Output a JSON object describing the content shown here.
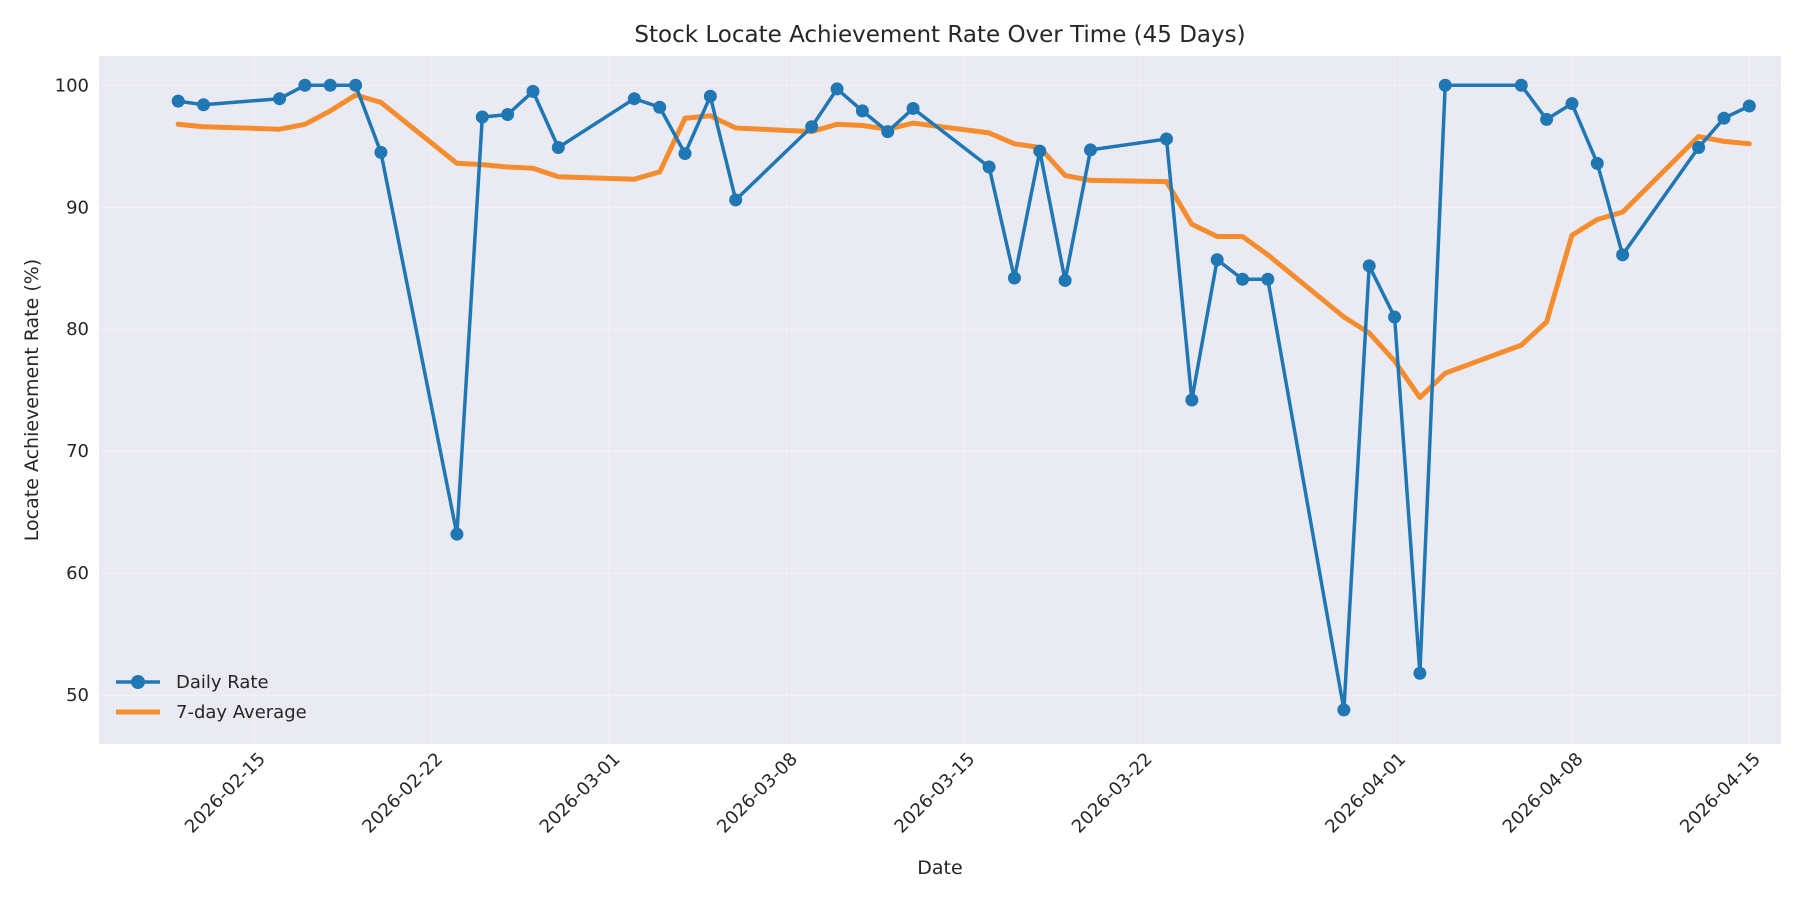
{
  "chart_data": {
    "type": "line",
    "title": "Stock Locate Achievement Rate Over Time (45 Days)",
    "xlabel": "Date",
    "ylabel": "Locate Achievement Rate (%)",
    "x_tick_labels": [
      "2026-02-15",
      "2026-02-22",
      "2026-03-01",
      "2026-03-08",
      "2026-03-15",
      "2026-03-22",
      "2026-04-01",
      "2026-04-08",
      "2026-04-15"
    ],
    "y_ticks": [
      50,
      60,
      70,
      80,
      90,
      100
    ],
    "ylim": [
      46.0,
      102.4
    ],
    "xlim": [
      "2026-02-08T21:00",
      "2026-04-16T06:00"
    ],
    "grid": true,
    "legend_position": "lower-left",
    "background_color": "#eaeaf2",
    "series": [
      {
        "name": "Daily Rate",
        "color": "#1f77b4",
        "marker": "circle",
        "x": [
          "2026-02-12",
          "2026-02-13",
          "2026-02-16",
          "2026-02-17",
          "2026-02-18",
          "2026-02-19",
          "2026-02-20",
          "2026-02-23",
          "2026-02-24",
          "2026-02-25",
          "2026-02-26",
          "2026-02-27",
          "2026-03-02",
          "2026-03-03",
          "2026-03-04",
          "2026-03-05",
          "2026-03-06",
          "2026-03-09",
          "2026-03-10",
          "2026-03-11",
          "2026-03-12",
          "2026-03-13",
          "2026-03-16",
          "2026-03-17",
          "2026-03-18",
          "2026-03-19",
          "2026-03-20",
          "2026-03-23",
          "2026-03-24",
          "2026-03-25",
          "2026-03-26",
          "2026-03-27",
          "2026-03-30",
          "2026-03-31",
          "2026-04-01",
          "2026-04-02",
          "2026-04-03",
          "2026-04-06",
          "2026-04-07",
          "2026-04-08",
          "2026-04-09",
          "2026-04-10",
          "2026-04-13",
          "2026-04-14",
          "2026-04-15"
        ],
        "y": [
          98.7,
          98.4,
          98.9,
          100.0,
          100.0,
          100.0,
          94.5,
          63.2,
          97.4,
          97.6,
          99.5,
          94.9,
          98.9,
          98.2,
          94.4,
          99.1,
          90.6,
          96.6,
          99.7,
          97.9,
          96.2,
          98.1,
          93.3,
          84.2,
          94.6,
          84.0,
          94.7,
          95.6,
          74.2,
          85.7,
          84.1,
          84.1,
          48.8,
          85.2,
          81.0,
          51.8,
          100.0,
          100.0,
          97.2,
          98.5,
          93.6,
          86.1,
          94.9,
          97.3,
          98.3
        ]
      },
      {
        "name": "7-day Average",
        "color": "#f58d2e",
        "marker": "none",
        "x": [
          "2026-02-12",
          "2026-02-13",
          "2026-02-16",
          "2026-02-17",
          "2026-02-18",
          "2026-02-19",
          "2026-02-20",
          "2026-02-23",
          "2026-02-24",
          "2026-02-25",
          "2026-02-26",
          "2026-02-27",
          "2026-03-02",
          "2026-03-03",
          "2026-03-04",
          "2026-03-05",
          "2026-03-06",
          "2026-03-09",
          "2026-03-10",
          "2026-03-11",
          "2026-03-12",
          "2026-03-13",
          "2026-03-16",
          "2026-03-17",
          "2026-03-18",
          "2026-03-19",
          "2026-03-20",
          "2026-03-23",
          "2026-03-24",
          "2026-03-25",
          "2026-03-26",
          "2026-03-27",
          "2026-03-30",
          "2026-03-31",
          "2026-04-01",
          "2026-04-02",
          "2026-04-03",
          "2026-04-06",
          "2026-04-07",
          "2026-04-08",
          "2026-04-09",
          "2026-04-10",
          "2026-04-13",
          "2026-04-14",
          "2026-04-15"
        ],
        "y": [
          96.8,
          96.6,
          96.4,
          96.8,
          97.9,
          99.2,
          98.6,
          93.6,
          93.5,
          93.3,
          93.2,
          92.5,
          92.3,
          92.9,
          97.3,
          97.5,
          96.5,
          96.2,
          96.8,
          96.7,
          96.4,
          96.9,
          96.1,
          95.2,
          94.9,
          92.6,
          92.2,
          92.1,
          88.6,
          87.6,
          87.6,
          86.1,
          81.0,
          79.7,
          77.4,
          74.4,
          76.4,
          78.7,
          80.6,
          87.7,
          89.0,
          89.6,
          95.8,
          95.4,
          95.2
        ]
      }
    ]
  }
}
